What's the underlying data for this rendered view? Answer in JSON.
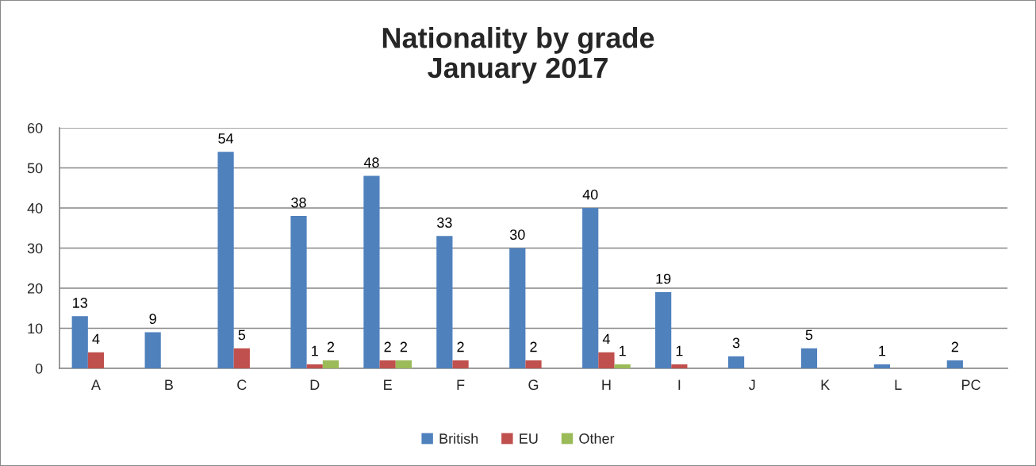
{
  "chart_data": {
    "type": "bar",
    "title": "Nationality by grade\nJanuary 2017",
    "categories": [
      "A",
      "B",
      "C",
      "D",
      "E",
      "F",
      "G",
      "H",
      "I",
      "J",
      "K",
      "L",
      "PC"
    ],
    "series": [
      {
        "name": "British",
        "color": "#4f81bd",
        "values": [
          13,
          9,
          54,
          38,
          48,
          33,
          30,
          40,
          19,
          3,
          5,
          1,
          2
        ]
      },
      {
        "name": "EU",
        "color": "#c0504d",
        "values": [
          4,
          null,
          5,
          1,
          2,
          2,
          2,
          4,
          1,
          null,
          null,
          null,
          null
        ]
      },
      {
        "name": "Other",
        "color": "#9bbb59",
        "values": [
          null,
          null,
          null,
          2,
          2,
          null,
          null,
          1,
          null,
          null,
          null,
          null,
          null
        ]
      }
    ],
    "ylim": [
      0,
      60
    ],
    "yticks": [
      0,
      10,
      20,
      30,
      40,
      50,
      60
    ],
    "grid": "y",
    "legend": "bottom",
    "data_labels": true
  }
}
